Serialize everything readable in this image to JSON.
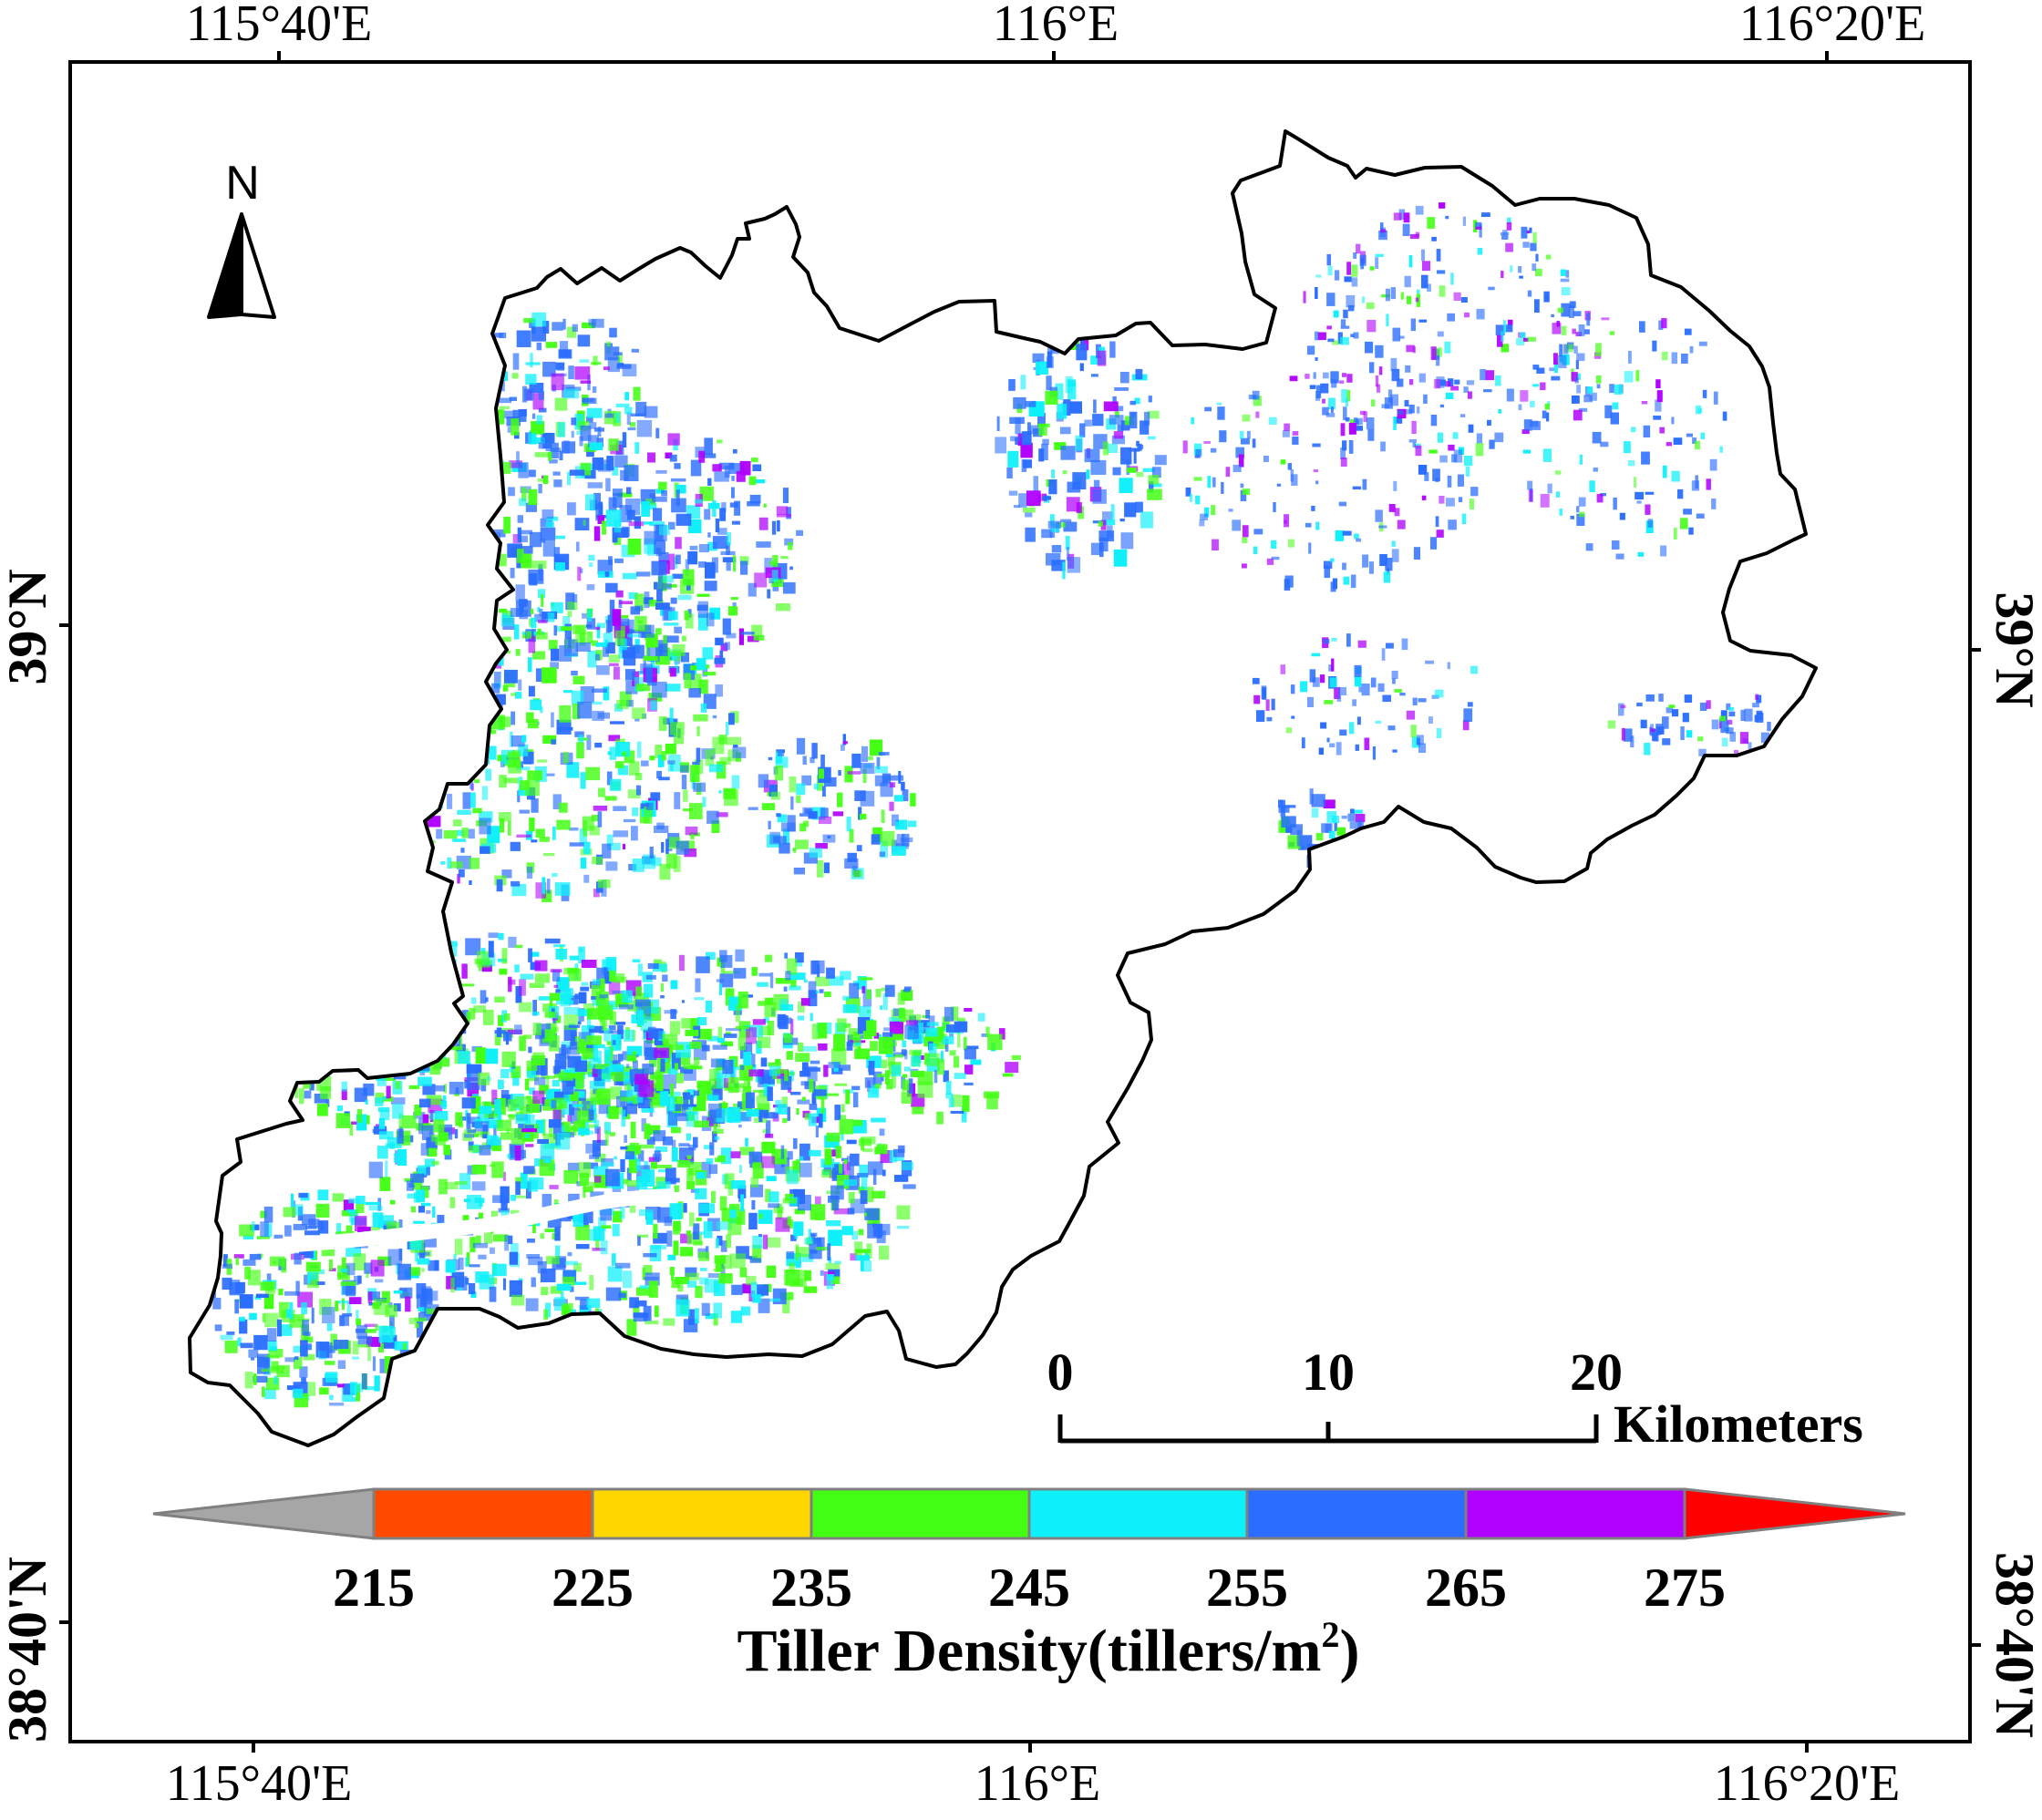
{
  "frame": {
    "top_labels": [
      "115°40'E",
      "116°E",
      "116°20'E"
    ],
    "bottom_labels": [
      "115°40'E",
      "116°E",
      "116°20'E"
    ],
    "left_labels": [
      "39°N",
      "38°40'N"
    ],
    "right_labels": [
      "39°N",
      "38°40'N"
    ]
  },
  "north_arrow": {
    "label": "N",
    "icon": "north-arrow-icon"
  },
  "scale_bar": {
    "ticks": [
      "0",
      "10",
      "20"
    ],
    "unit": "Kilometers"
  },
  "legend": {
    "title_main": "Tiller Density(tillers/m",
    "title_sup": "2",
    "title_end": ")",
    "tick_labels": [
      "215",
      "225",
      "235",
      "245",
      "255",
      "265",
      "275"
    ],
    "classes": [
      {
        "label": "< 215",
        "color": "#a6a6a6"
      },
      {
        "label": "215-225",
        "color": "#ff4a00"
      },
      {
        "label": "225-235",
        "color": "#ffd700"
      },
      {
        "label": "235-245",
        "color": "#43ff14"
      },
      {
        "label": "245-255",
        "color": "#0ef0fa"
      },
      {
        "label": "255-265",
        "color": "#2a6dff"
      },
      {
        "label": "265-275",
        "color": "#b000ff"
      },
      {
        "label": "> 275",
        "color": "#ff0000"
      }
    ]
  },
  "colors": {
    "boundary": "#000000",
    "frame": "#000000",
    "legend_border": "#808080"
  }
}
